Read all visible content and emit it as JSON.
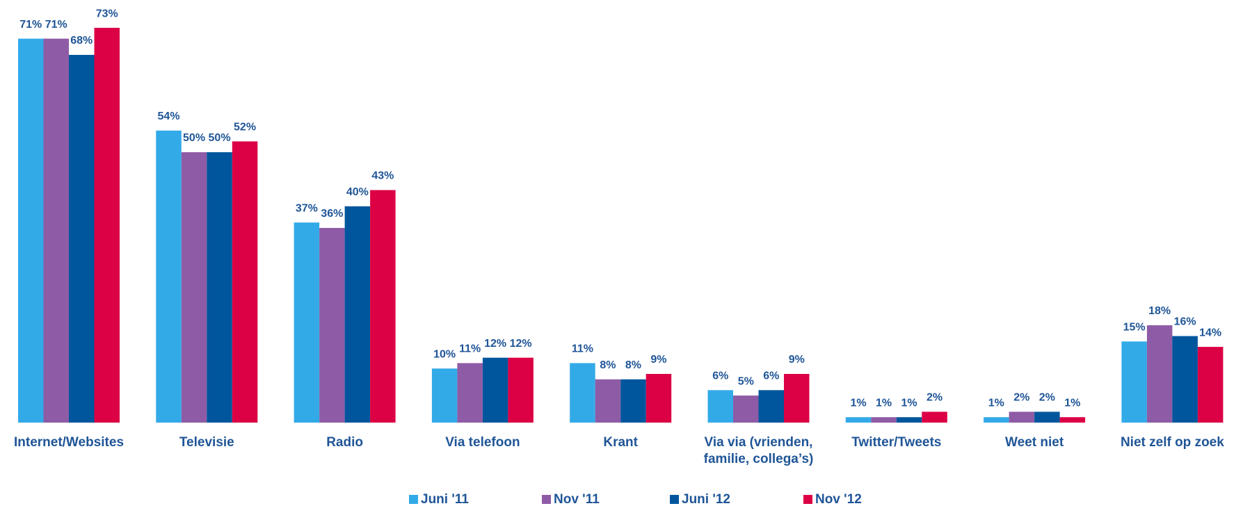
{
  "chart_data": {
    "type": "bar",
    "categories": [
      "Internet/Websites",
      "Televisie",
      "Radio",
      "Via telefoon",
      "Krant",
      "Via via (vrienden,\nfamilie, collega’s)",
      "Twitter/Tweets",
      "Weet niet",
      "Niet zelf op zoek"
    ],
    "series": [
      {
        "name": "Juni '11",
        "color": "#33aae8",
        "values": [
          71,
          54,
          37,
          10,
          11,
          6,
          1,
          1,
          15
        ],
        "value_labels": [
          "71%",
          "54%",
          "37%",
          "10%",
          "11%",
          "6%",
          "1%",
          "1%",
          "15%"
        ]
      },
      {
        "name": "Nov '11",
        "color": "#8e5ba6",
        "values": [
          71,
          50,
          36,
          11,
          8,
          5,
          1,
          2,
          18
        ],
        "value_labels": [
          "71%",
          "50%",
          "36%",
          "11%",
          "8%",
          "5%",
          "1%",
          "2%",
          "18%"
        ]
      },
      {
        "name": "Juni '12",
        "color": "#00569d",
        "values": [
          68,
          50,
          40,
          12,
          8,
          6,
          1,
          2,
          16
        ],
        "value_labels": [
          "68%",
          "50%",
          "40%",
          "12%",
          "8%",
          "6%",
          "1%",
          "2%",
          "16%"
        ]
      },
      {
        "name": "Nov '12",
        "color": "#dc0045",
        "values": [
          73,
          52,
          43,
          12,
          9,
          9,
          2,
          1,
          14
        ],
        "value_labels": [
          "73%",
          "52%",
          "43%",
          "12%",
          "9%",
          "9%",
          "2%",
          "1%",
          "14%"
        ]
      }
    ],
    "legend": "bottom"
  }
}
